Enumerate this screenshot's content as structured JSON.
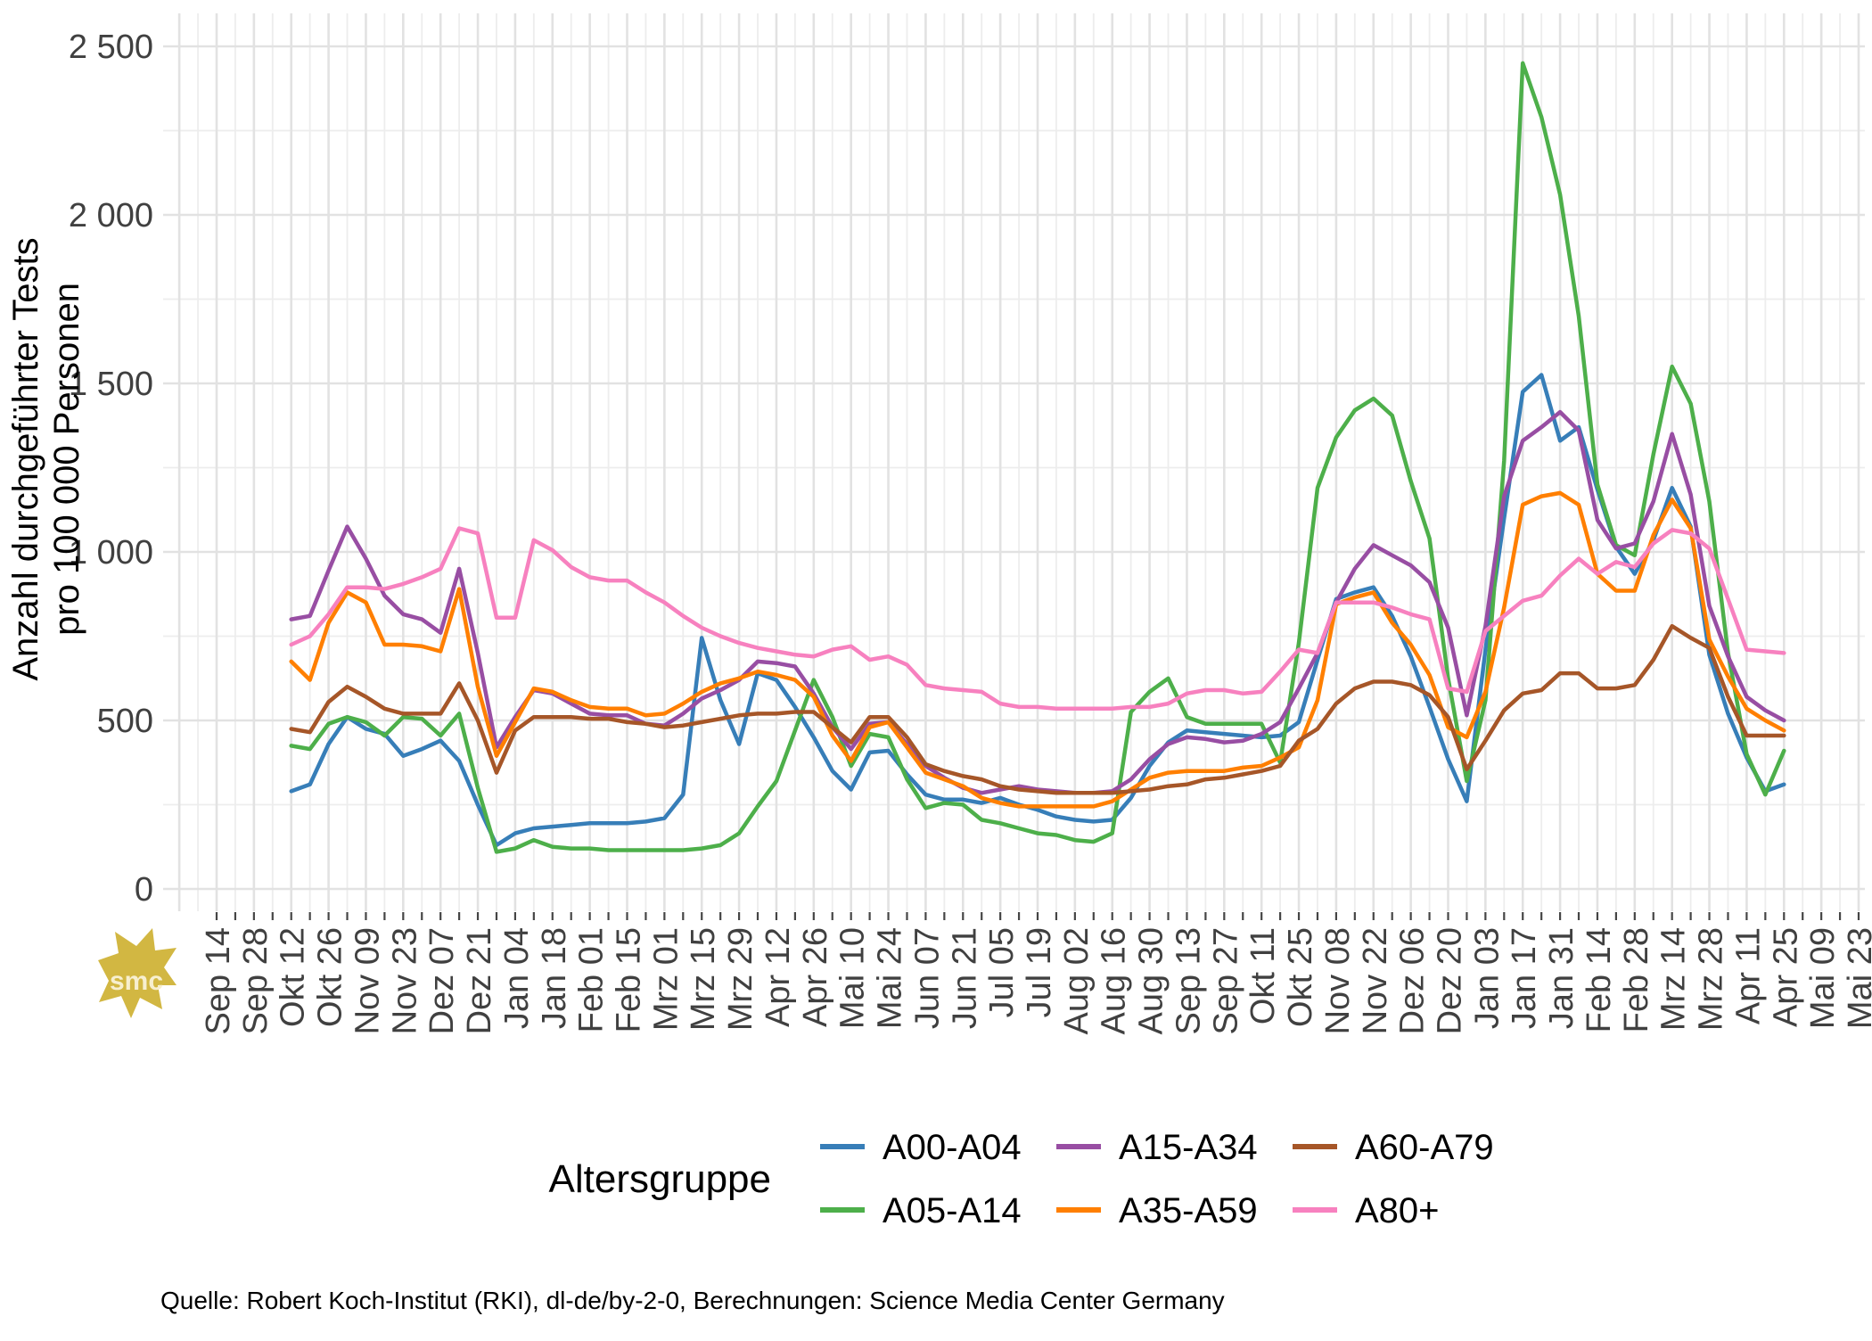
{
  "y_axis": {
    "label_line1": "Anzahl durchgeführter Tests",
    "label_line2": "pro 100 000 Personen",
    "ticks": [
      "0",
      "500",
      "1 000",
      "1 500",
      "2 000",
      "2 500"
    ],
    "tick_values": [
      0,
      500,
      1000,
      1500,
      2000,
      2500
    ]
  },
  "legend": {
    "title": "Altersgruppe",
    "items": [
      {
        "label": "A00-A04",
        "color": "#377EB8"
      },
      {
        "label": "A05-A14",
        "color": "#4DAF4A"
      },
      {
        "label": "A15-A34",
        "color": "#984EA3"
      },
      {
        "label": "A35-A59",
        "color": "#FF7F00"
      },
      {
        "label": "A60-A79",
        "color": "#A65628"
      },
      {
        "label": "A80+",
        "color": "#F781BF"
      }
    ]
  },
  "caption": {
    "text": "Quelle: Robert Koch-Institut (RKI), dl-de/by-2-0, Berechnungen: Science Media Center Germany"
  },
  "logo": {
    "text": "smc",
    "color": "#d2b742"
  },
  "chart_data": {
    "type": "line",
    "title": "",
    "xlabel": "",
    "ylabel": "Anzahl durchgeführter Tests pro 100 000 Personen",
    "ylim": [
      0,
      2500
    ],
    "grid": "weekly vertical gridlines; horizontal gridlines every 250 (major every 500)",
    "legend_position": "bottom",
    "x_tick_labels": [
      "Sep 14",
      "Sep 28",
      "Okt 12",
      "Okt 26",
      "Nov 09",
      "Nov 23",
      "Dez 07",
      "Dez 21",
      "Jan 04",
      "Jan 18",
      "Feb 01",
      "Feb 15",
      "Mrz 01",
      "Mrz 15",
      "Mrz 29",
      "Apr 12",
      "Apr 26",
      "Mai 10",
      "Mai 24",
      "Jun 07",
      "Jun 21",
      "Jul 05",
      "Jul 19",
      "Aug 02",
      "Aug 16",
      "Aug 30",
      "Sep 13",
      "Sep 27",
      "Okt 11",
      "Okt 25",
      "Nov 08",
      "Nov 22",
      "Dez 06",
      "Dez 20",
      "Jan 03",
      "Jan 17",
      "Jan 31",
      "Feb 14",
      "Feb 28",
      "Mrz 14",
      "Mrz 28",
      "Apr 11",
      "Apr 25",
      "Mai 09",
      "Mai 23"
    ],
    "x_unit": "week",
    "weeks_total": 88,
    "start_week": 4,
    "start_label": "Okt 12 (2020)",
    "end_label": "Apr 25 (2022)",
    "series": [
      {
        "name": "A00-A04",
        "color": "#377EB8",
        "values": [
          290,
          310,
          430,
          510,
          475,
          460,
          395,
          415,
          440,
          380,
          250,
          130,
          165,
          180,
          185,
          190,
          195,
          195,
          195,
          200,
          210,
          280,
          745,
          560,
          430,
          640,
          620,
          540,
          450,
          350,
          295,
          405,
          410,
          340,
          280,
          265,
          265,
          255,
          270,
          250,
          235,
          215,
          205,
          200,
          205,
          270,
          365,
          435,
          470,
          465,
          460,
          455,
          450,
          455,
          495,
          680,
          860,
          880,
          895,
          810,
          690,
          540,
          385,
          260,
          710,
          1100,
          1475,
          1525,
          1330,
          1370,
          1185,
          1015,
          935,
          1035,
          1190,
          1075,
          695,
          520,
          390,
          290,
          310
        ]
      },
      {
        "name": "A05-A14",
        "color": "#4DAF4A",
        "values": [
          425,
          415,
          490,
          510,
          495,
          455,
          510,
          505,
          455,
          520,
          300,
          110,
          120,
          145,
          125,
          120,
          120,
          115,
          115,
          115,
          115,
          115,
          120,
          130,
          165,
          245,
          320,
          470,
          620,
          510,
          365,
          460,
          450,
          325,
          240,
          255,
          250,
          205,
          195,
          180,
          165,
          160,
          145,
          140,
          165,
          525,
          585,
          625,
          510,
          490,
          490,
          490,
          490,
          375,
          730,
          1190,
          1340,
          1420,
          1455,
          1405,
          1210,
          1040,
          625,
          320,
          560,
          1270,
          2450,
          2290,
          2060,
          1700,
          1200,
          1020,
          990,
          1290,
          1550,
          1440,
          1150,
          700,
          400,
          280,
          410
        ]
      },
      {
        "name": "A15-A34",
        "color": "#984EA3",
        "values": [
          800,
          810,
          945,
          1075,
          980,
          870,
          815,
          800,
          760,
          950,
          700,
          420,
          510,
          590,
          580,
          550,
          520,
          515,
          515,
          490,
          485,
          520,
          565,
          590,
          620,
          675,
          670,
          660,
          580,
          480,
          415,
          490,
          495,
          430,
          365,
          330,
          300,
          285,
          295,
          305,
          295,
          290,
          285,
          285,
          290,
          325,
          385,
          430,
          450,
          445,
          435,
          440,
          460,
          495,
          595,
          700,
          850,
          950,
          1020,
          990,
          960,
          910,
          775,
          515,
          780,
          1165,
          1330,
          1370,
          1415,
          1360,
          1095,
          1010,
          1025,
          1150,
          1350,
          1170,
          840,
          690,
          570,
          530,
          500
        ]
      },
      {
        "name": "A35-A59",
        "color": "#FF7F00",
        "values": [
          675,
          620,
          790,
          880,
          850,
          725,
          725,
          720,
          705,
          890,
          600,
          395,
          495,
          595,
          585,
          560,
          540,
          535,
          535,
          515,
          520,
          550,
          585,
          610,
          625,
          645,
          635,
          620,
          570,
          455,
          380,
          480,
          495,
          420,
          345,
          325,
          305,
          270,
          255,
          245,
          245,
          245,
          245,
          245,
          260,
          295,
          330,
          345,
          350,
          350,
          350,
          360,
          365,
          390,
          420,
          560,
          845,
          865,
          880,
          790,
          725,
          635,
          480,
          450,
          585,
          835,
          1140,
          1165,
          1175,
          1140,
          935,
          885,
          885,
          1050,
          1155,
          1070,
          740,
          630,
          535,
          500,
          470
        ]
      },
      {
        "name": "A60-A79",
        "color": "#A65628",
        "values": [
          475,
          465,
          555,
          600,
          570,
          535,
          520,
          520,
          520,
          610,
          500,
          345,
          470,
          510,
          510,
          510,
          505,
          505,
          495,
          490,
          480,
          485,
          495,
          505,
          515,
          520,
          520,
          525,
          525,
          480,
          435,
          510,
          510,
          450,
          370,
          350,
          335,
          325,
          305,
          295,
          290,
          285,
          285,
          285,
          285,
          290,
          295,
          305,
          310,
          325,
          330,
          340,
          350,
          365,
          440,
          475,
          550,
          595,
          615,
          615,
          605,
          575,
          510,
          355,
          440,
          530,
          580,
          590,
          640,
          640,
          595,
          595,
          605,
          680,
          780,
          745,
          715,
          570,
          455,
          455,
          455
        ]
      },
      {
        "name": "A80+",
        "color": "#F781BF",
        "values": [
          725,
          750,
          815,
          895,
          895,
          890,
          905,
          925,
          950,
          1070,
          1055,
          805,
          805,
          1035,
          1005,
          955,
          925,
          915,
          915,
          880,
          850,
          810,
          775,
          750,
          730,
          715,
          705,
          695,
          690,
          710,
          720,
          680,
          690,
          665,
          605,
          595,
          590,
          585,
          550,
          540,
          540,
          535,
          535,
          535,
          535,
          540,
          540,
          550,
          580,
          590,
          590,
          580,
          585,
          645,
          710,
          700,
          850,
          850,
          850,
          835,
          815,
          800,
          595,
          585,
          765,
          810,
          855,
          870,
          930,
          980,
          935,
          970,
          955,
          1025,
          1065,
          1055,
          1010,
          860,
          710,
          705,
          700
        ]
      }
    ]
  }
}
